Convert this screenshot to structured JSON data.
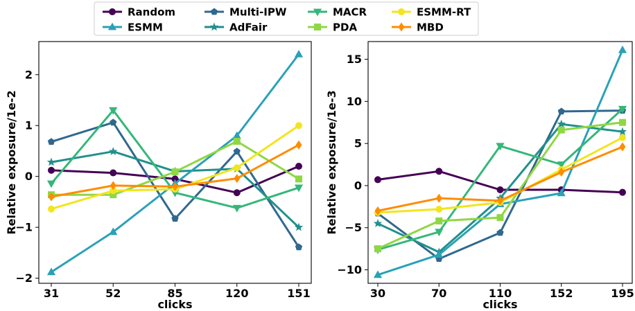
{
  "legend": {
    "placement": "top-center",
    "columns": 4,
    "order": [
      "Random",
      "ESMM",
      "Multi-IPW",
      "AdFair",
      "MACR",
      "PDA",
      "ESMM-RT",
      "MBD"
    ]
  },
  "series_style": [
    {
      "name": "Random",
      "color": "#440154",
      "marker": "circle"
    },
    {
      "name": "Multi-IPW",
      "color": "#30688e",
      "marker": "pentagon"
    },
    {
      "name": "AdFair",
      "color": "#20908c",
      "marker": "star"
    },
    {
      "name": "ESMM",
      "color": "#2aa1b7",
      "marker": "triangle-up"
    },
    {
      "name": "MACR",
      "color": "#35b779",
      "marker": "triangle-down"
    },
    {
      "name": "PDA",
      "color": "#8fd744",
      "marker": "square"
    },
    {
      "name": "ESMM-RT",
      "color": "#f2e51d",
      "marker": "circle"
    },
    {
      "name": "MBD",
      "color": "#ff8c00",
      "marker": "diamond"
    }
  ],
  "chart_data": [
    {
      "type": "line",
      "xlabel": "clicks",
      "ylabel": "Relative exposure/1e-2",
      "categories": [
        "31",
        "52",
        "85",
        "120",
        "151"
      ],
      "ylim": [
        -2.1,
        2.65
      ],
      "yticks": [
        -2,
        -1,
        0,
        1,
        2
      ],
      "ytick_labels": [
        "−2",
        "−1",
        "0",
        "1",
        "2"
      ],
      "grid": false,
      "series": [
        {
          "name": "Random",
          "values": [
            0.12,
            0.07,
            -0.05,
            -0.32,
            0.2
          ]
        },
        {
          "name": "Multi-IPW",
          "values": [
            0.68,
            1.06,
            -0.83,
            0.49,
            -1.39
          ]
        },
        {
          "name": "AdFair",
          "values": [
            0.28,
            0.49,
            0.1,
            0.15,
            -1.0
          ]
        },
        {
          "name": "ESMM",
          "values": [
            -1.88,
            -1.09,
            -0.14,
            0.8,
            2.4
          ]
        },
        {
          "name": "MACR",
          "values": [
            -0.14,
            1.3,
            -0.32,
            -0.62,
            -0.22
          ]
        },
        {
          "name": "PDA",
          "values": [
            -0.36,
            -0.36,
            0.09,
            0.69,
            -0.05
          ]
        },
        {
          "name": "ESMM-RT",
          "values": [
            -0.64,
            -0.28,
            -0.25,
            0.17,
            1.0
          ]
        },
        {
          "name": "MBD",
          "values": [
            -0.4,
            -0.18,
            -0.2,
            -0.04,
            0.62
          ]
        }
      ]
    },
    {
      "type": "line",
      "xlabel": "clicks",
      "ylabel": "Relative exposure/1e-3",
      "categories": [
        "30",
        "70",
        "110",
        "152",
        "195"
      ],
      "ylim": [
        -11.6,
        17.1
      ],
      "yticks": [
        -10,
        -5,
        0,
        5,
        10,
        15
      ],
      "ytick_labels": [
        "−10",
        "−5",
        "0",
        "5",
        "10",
        "15"
      ],
      "grid": false,
      "series": [
        {
          "name": "Random",
          "values": [
            0.7,
            1.7,
            -0.5,
            -0.5,
            -0.8
          ]
        },
        {
          "name": "Multi-IPW",
          "values": [
            -3.3,
            -8.7,
            -5.6,
            8.8,
            8.9
          ]
        },
        {
          "name": "AdFair",
          "values": [
            -4.5,
            -7.9,
            -1.5,
            7.3,
            6.4
          ]
        },
        {
          "name": "ESMM",
          "values": [
            -10.6,
            -8.2,
            -2.2,
            -0.9,
            16.1
          ]
        },
        {
          "name": "MACR",
          "values": [
            -7.6,
            -5.5,
            4.7,
            2.5,
            9.1
          ]
        },
        {
          "name": "PDA",
          "values": [
            -7.5,
            -4.2,
            -3.8,
            6.6,
            7.5
          ]
        },
        {
          "name": "ESMM-RT",
          "values": [
            -3.2,
            -2.8,
            -2.0,
            1.9,
            5.7
          ]
        },
        {
          "name": "MBD",
          "values": [
            -3.0,
            -1.5,
            -1.8,
            1.6,
            4.6
          ]
        }
      ]
    }
  ]
}
